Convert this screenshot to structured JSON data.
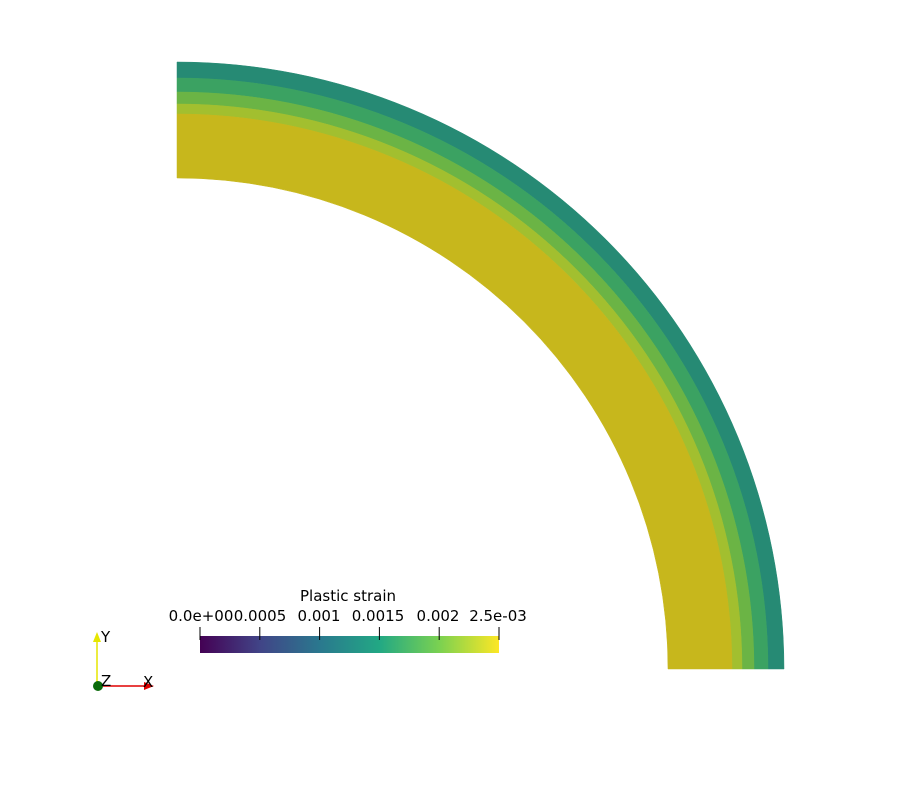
{
  "colorbar": {
    "title": "Plastic strain",
    "tick_labels": [
      "0.0e+00",
      "0.0005",
      "0.001",
      "0.0015",
      "0.002",
      "2.5e-03"
    ],
    "range": [
      0,
      0.0025
    ],
    "colormap": [
      "#440154",
      "#414487",
      "#2a788e",
      "#22a884",
      "#7ad151",
      "#fde725"
    ]
  },
  "field_colors": {
    "inner_yielded": "#c7b71c",
    "band_1": "#a2bf2f",
    "band_2": "#6bb445",
    "band_3": "#3ba262",
    "outer": "#268a74"
  },
  "axes": {
    "x_label": "X",
    "y_label": "Y",
    "z_label": "Z"
  }
}
